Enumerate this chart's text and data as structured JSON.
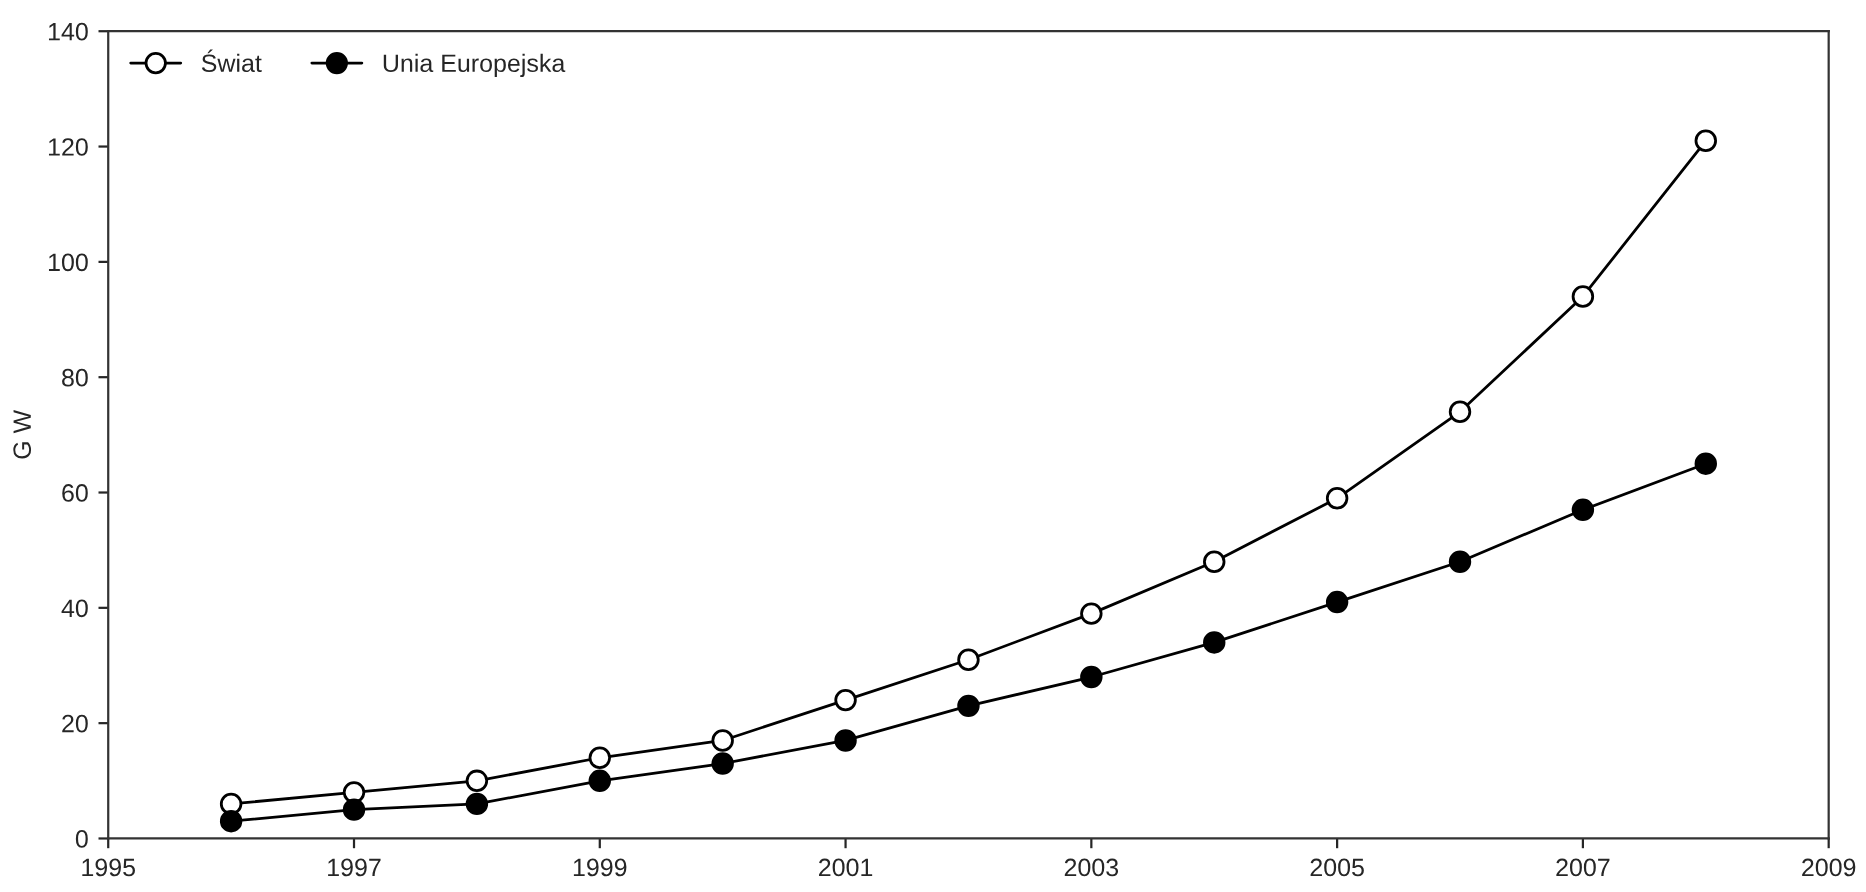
{
  "chart_data": {
    "type": "line",
    "ylabel": "G W",
    "x": [
      1996,
      1997,
      1998,
      1999,
      2000,
      2001,
      2002,
      2003,
      2004,
      2005,
      2006,
      2007,
      2008
    ],
    "series": [
      {
        "name": "Świat",
        "color": "#ffffff",
        "values": [
          6,
          8,
          10,
          14,
          17,
          24,
          31,
          39,
          48,
          59,
          74,
          94,
          121
        ]
      },
      {
        "name": "Unia Europejska",
        "color": "#000000",
        "values": [
          3,
          5,
          6,
          10,
          13,
          17,
          23,
          28,
          34,
          41,
          48,
          57,
          65
        ]
      }
    ],
    "xlim": [
      1995,
      2009
    ],
    "xticks": [
      1995,
      1997,
      1999,
      2001,
      2003,
      2005,
      2007,
      2009
    ],
    "ylim": [
      0,
      140
    ],
    "yticks": [
      0,
      20,
      40,
      60,
      80,
      100,
      120,
      140
    ],
    "grid": false,
    "legend": "top left",
    "marker": "circle",
    "line_style": "solid"
  }
}
